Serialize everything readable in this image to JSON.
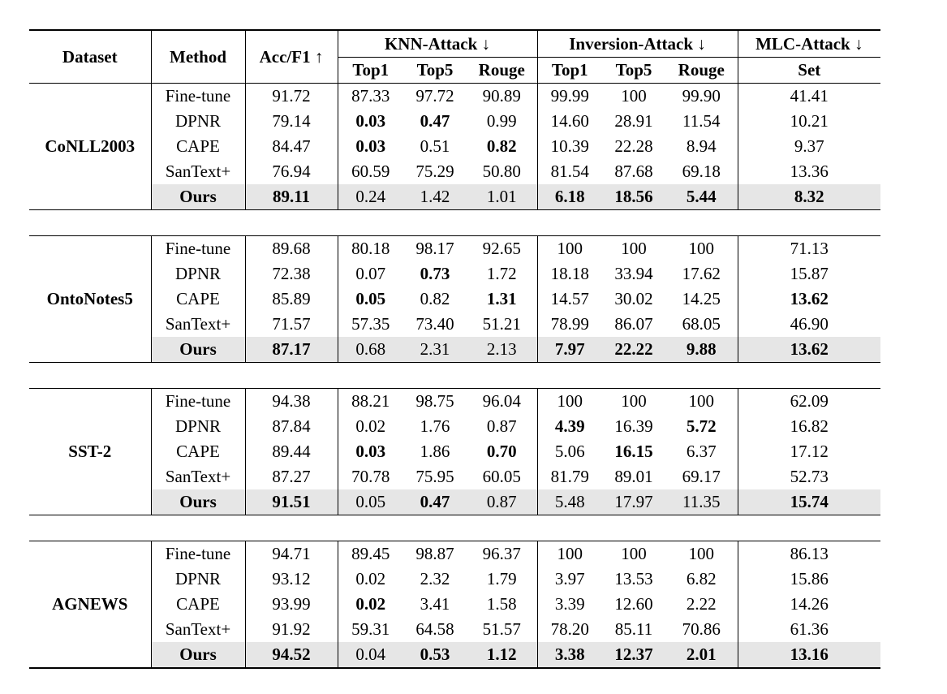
{
  "header": {
    "dataset": "Dataset",
    "method": "Method",
    "acc": "Acc/F1 ↑",
    "knn": "KNN-Attack ↓",
    "inversion": "Inversion-Attack ↓",
    "mlc": "MLC-Attack ↓",
    "sub": [
      "Top1",
      "Top5",
      "Rouge",
      "Top1",
      "Top5",
      "Rouge",
      "Set"
    ]
  },
  "groups": [
    {
      "dataset": "CoNLL2003",
      "rows": [
        {
          "method": "Fine-tune",
          "values": [
            "91.72",
            "87.33",
            "97.72",
            "90.89",
            "99.99",
            "100",
            "99.90",
            "41.41"
          ],
          "bold": []
        },
        {
          "method": "DPNR",
          "values": [
            "79.14",
            "0.03",
            "0.47",
            "0.99",
            "14.60",
            "28.91",
            "11.54",
            "10.21"
          ],
          "bold": [
            1,
            2
          ]
        },
        {
          "method": "CAPE",
          "values": [
            "84.47",
            "0.03",
            "0.51",
            "0.82",
            "10.39",
            "22.28",
            "8.94",
            "9.37"
          ],
          "bold": [
            1,
            3
          ]
        },
        {
          "method": "SanText+",
          "values": [
            "76.94",
            "60.59",
            "75.29",
            "50.80",
            "81.54",
            "87.68",
            "69.18",
            "13.36"
          ],
          "bold": []
        },
        {
          "method": "Ours",
          "values": [
            "89.11",
            "0.24",
            "1.42",
            "1.01",
            "6.18",
            "18.56",
            "5.44",
            "8.32"
          ],
          "bold": [
            0,
            4,
            5,
            6,
            7
          ]
        }
      ]
    },
    {
      "dataset": "OntoNotes5",
      "rows": [
        {
          "method": "Fine-tune",
          "values": [
            "89.68",
            "80.18",
            "98.17",
            "92.65",
            "100",
            "100",
            "100",
            "71.13"
          ],
          "bold": []
        },
        {
          "method": "DPNR",
          "values": [
            "72.38",
            "0.07",
            "0.73",
            "1.72",
            "18.18",
            "33.94",
            "17.62",
            "15.87"
          ],
          "bold": [
            2
          ]
        },
        {
          "method": "CAPE",
          "values": [
            "85.89",
            "0.05",
            "0.82",
            "1.31",
            "14.57",
            "30.02",
            "14.25",
            "13.62"
          ],
          "bold": [
            1,
            3,
            7
          ]
        },
        {
          "method": "SanText+",
          "values": [
            "71.57",
            "57.35",
            "73.40",
            "51.21",
            "78.99",
            "86.07",
            "68.05",
            "46.90"
          ],
          "bold": []
        },
        {
          "method": "Ours",
          "values": [
            "87.17",
            "0.68",
            "2.31",
            "2.13",
            "7.97",
            "22.22",
            "9.88",
            "13.62"
          ],
          "bold": [
            0,
            4,
            5,
            6,
            7
          ]
        }
      ]
    },
    {
      "dataset": "SST-2",
      "rows": [
        {
          "method": "Fine-tune",
          "values": [
            "94.38",
            "88.21",
            "98.75",
            "96.04",
            "100",
            "100",
            "100",
            "62.09"
          ],
          "bold": []
        },
        {
          "method": "DPNR",
          "values": [
            "87.84",
            "0.02",
            "1.76",
            "0.87",
            "4.39",
            "16.39",
            "5.72",
            "16.82"
          ],
          "bold": [
            4,
            6
          ]
        },
        {
          "method": "CAPE",
          "values": [
            "89.44",
            "0.03",
            "1.86",
            "0.70",
            "5.06",
            "16.15",
            "6.37",
            "17.12"
          ],
          "bold": [
            1,
            3,
            5
          ]
        },
        {
          "method": "SanText+",
          "values": [
            "87.27",
            "70.78",
            "75.95",
            "60.05",
            "81.79",
            "89.01",
            "69.17",
            "52.73"
          ],
          "bold": []
        },
        {
          "method": "Ours",
          "values": [
            "91.51",
            "0.05",
            "0.47",
            "0.87",
            "5.48",
            "17.97",
            "11.35",
            "15.74"
          ],
          "bold": [
            0,
            2,
            7
          ]
        }
      ]
    },
    {
      "dataset": "AGNEWS",
      "rows": [
        {
          "method": "Fine-tune",
          "values": [
            "94.71",
            "89.45",
            "98.87",
            "96.37",
            "100",
            "100",
            "100",
            "86.13"
          ],
          "bold": []
        },
        {
          "method": "DPNR",
          "values": [
            "93.12",
            "0.02",
            "2.32",
            "1.79",
            "3.97",
            "13.53",
            "6.82",
            "15.86"
          ],
          "bold": []
        },
        {
          "method": "CAPE",
          "values": [
            "93.99",
            "0.02",
            "3.41",
            "1.58",
            "3.39",
            "12.60",
            "2.22",
            "14.26"
          ],
          "bold": [
            1
          ]
        },
        {
          "method": "SanText+",
          "values": [
            "91.92",
            "59.31",
            "64.58",
            "51.57",
            "78.20",
            "85.11",
            "70.86",
            "61.36"
          ],
          "bold": []
        },
        {
          "method": "Ours",
          "values": [
            "94.52",
            "0.04",
            "0.53",
            "1.12",
            "3.38",
            "12.37",
            "2.01",
            "13.16"
          ],
          "bold": [
            0,
            2,
            3,
            4,
            5,
            6,
            7
          ]
        }
      ]
    }
  ]
}
